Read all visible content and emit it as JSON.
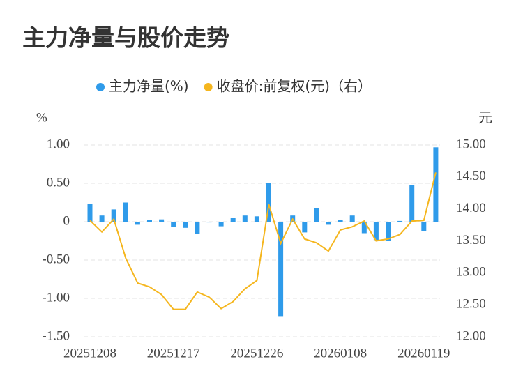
{
  "chart_data": {
    "type": "bar-line",
    "title": "主力净量与股价走势",
    "y_label": "%",
    "y2_label": "元",
    "legend": "top",
    "grid": true,
    "categories": [
      "20251208",
      null,
      null,
      null,
      null,
      null,
      null,
      "20251217",
      null,
      null,
      null,
      null,
      null,
      null,
      "20251226",
      null,
      null,
      null,
      null,
      null,
      null,
      "20260108",
      null,
      null,
      null,
      null,
      null,
      null,
      "20260119",
      null
    ],
    "series": [
      {
        "name": "主力净量(%)",
        "type": "bar",
        "color": "#2f9bea",
        "values": [
          0.23,
          0.08,
          0.16,
          0.25,
          -0.04,
          0.02,
          0.03,
          -0.07,
          -0.08,
          -0.16,
          -0.01,
          -0.06,
          0.05,
          0.08,
          0.07,
          0.5,
          -1.24,
          0.08,
          -0.14,
          0.18,
          -0.04,
          0.02,
          0.08,
          -0.15,
          -0.24,
          -0.25,
          0.01,
          0.48,
          -0.12,
          0.97
        ]
      },
      {
        "name": "收盘价:前复权(元)（右）",
        "type": "line",
        "axis": "y2",
        "color": "#f5b61e",
        "values": [
          13.82,
          13.64,
          13.84,
          13.23,
          12.84,
          12.78,
          12.66,
          12.43,
          12.43,
          12.7,
          12.62,
          12.44,
          12.55,
          12.75,
          12.88,
          14.07,
          13.46,
          13.84,
          13.53,
          13.47,
          13.34,
          13.67,
          13.72,
          13.81,
          13.5,
          13.53,
          13.6,
          13.81,
          13.82,
          14.57
        ]
      }
    ],
    "ylim": [
      -1.5,
      1.0
    ],
    "yticks": [
      {
        "value": -1.5,
        "label": "-1.50"
      },
      {
        "value": -1.0,
        "label": "-1.00"
      },
      {
        "value": -0.5,
        "label": "-0.50"
      },
      0,
      {
        "value": 0.5,
        "label": "0.50"
      },
      {
        "value": 1.0,
        "label": "1.00"
      }
    ],
    "y2lim": [
      12.0,
      15.0
    ],
    "y2ticks": [
      {
        "value": 12.0,
        "label": "12.00"
      },
      {
        "value": 12.5,
        "label": "12.50"
      },
      {
        "value": 13.0,
        "label": "13.00"
      },
      {
        "value": 13.5,
        "label": "13.50"
      },
      {
        "value": 14.0,
        "label": "14.00"
      },
      {
        "value": 14.5,
        "label": "14.50"
      },
      {
        "value": 15.0,
        "label": "15.00"
      }
    ]
  }
}
